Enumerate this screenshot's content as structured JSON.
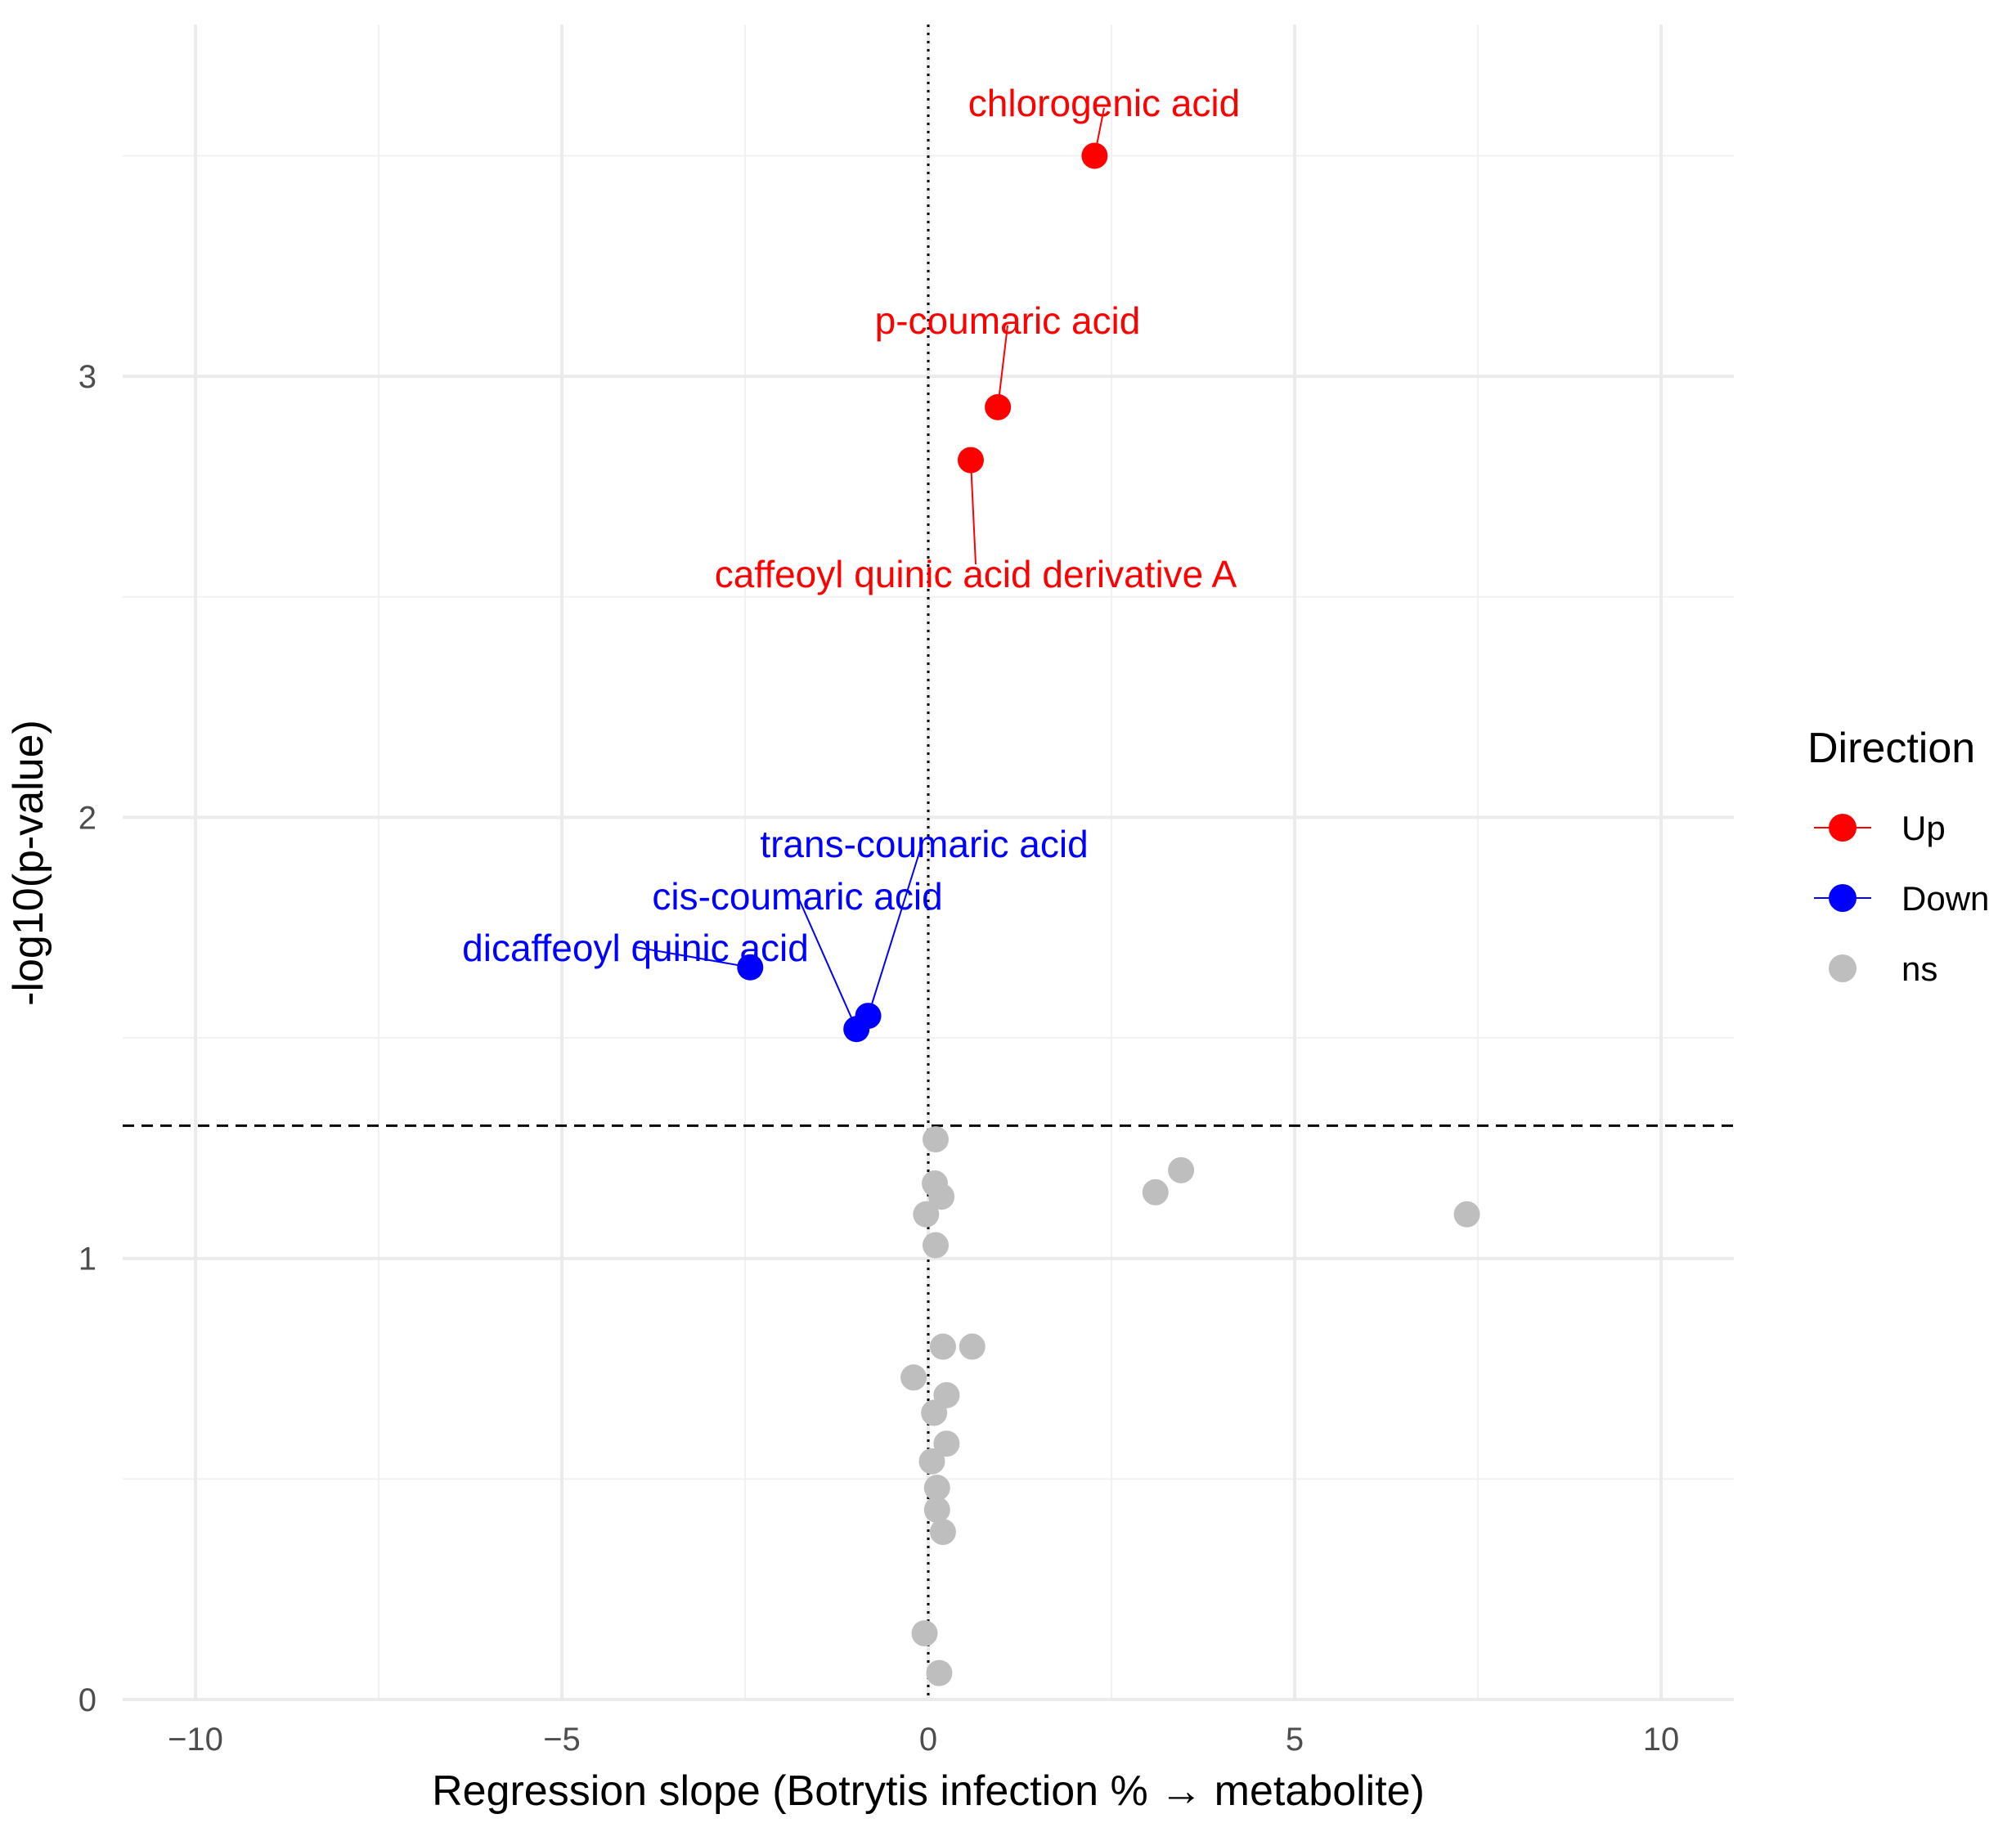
{
  "chart_data": {
    "type": "scatter",
    "title": "",
    "xlabel": "Regression slope (Botrytis infection % → metabolite)",
    "ylabel": "-log10(p-value)",
    "xlim": [
      -11,
      11
    ],
    "ylim": [
      0,
      3.8
    ],
    "x_ticks": [
      -10,
      -5,
      0,
      5,
      10
    ],
    "x_tick_labels": [
      "−10",
      "−5",
      "0",
      "5",
      "10"
    ],
    "y_ticks": [
      0,
      1,
      2,
      3
    ],
    "y_tick_labels": [
      "0",
      "1",
      "2",
      "3"
    ],
    "grid": true,
    "significance_threshold": 1.301,
    "zero_line_x": 0,
    "legend": {
      "title": "Direction",
      "position": "right",
      "entries": [
        {
          "label": "Up",
          "color": "#ff0000"
        },
        {
          "label": "Down",
          "color": "#0000ff"
        },
        {
          "label": "ns",
          "color": "#bebebe"
        }
      ]
    },
    "colors": {
      "Up": "#ff0000",
      "Down": "#0000ff",
      "ns": "#bebebe"
    },
    "series": [
      {
        "name": "Up",
        "points": [
          {
            "x": 2.27,
            "y": 3.5,
            "label": "chlorogenic acid"
          },
          {
            "x": 0.95,
            "y": 2.93,
            "label": "p-coumaric acid"
          },
          {
            "x": 0.58,
            "y": 2.81,
            "label": "caffeoyl quinic acid derivative A"
          }
        ]
      },
      {
        "name": "Down",
        "points": [
          {
            "x": -2.43,
            "y": 1.66,
            "label": "dicaffeoyl quinic acid"
          },
          {
            "x": -0.82,
            "y": 1.55,
            "label": "trans-coumaric acid"
          },
          {
            "x": -0.98,
            "y": 1.52,
            "label": "cis-coumaric acid"
          }
        ]
      },
      {
        "name": "ns",
        "points": [
          {
            "x": 0.1,
            "y": 1.27
          },
          {
            "x": 0.09,
            "y": 1.17
          },
          {
            "x": 0.18,
            "y": 1.14
          },
          {
            "x": -0.03,
            "y": 1.1
          },
          {
            "x": 0.1,
            "y": 1.03
          },
          {
            "x": 3.1,
            "y": 1.15
          },
          {
            "x": 3.45,
            "y": 1.2
          },
          {
            "x": 7.35,
            "y": 1.1
          },
          {
            "x": 0.2,
            "y": 0.8
          },
          {
            "x": 0.6,
            "y": 0.8
          },
          {
            "x": -0.2,
            "y": 0.73
          },
          {
            "x": 0.25,
            "y": 0.69
          },
          {
            "x": 0.08,
            "y": 0.65
          },
          {
            "x": 0.25,
            "y": 0.58
          },
          {
            "x": 0.05,
            "y": 0.54
          },
          {
            "x": 0.12,
            "y": 0.48
          },
          {
            "x": 0.12,
            "y": 0.43
          },
          {
            "x": 0.2,
            "y": 0.38
          },
          {
            "x": -0.05,
            "y": 0.15
          },
          {
            "x": 0.15,
            "y": 0.06
          }
        ]
      }
    ]
  }
}
